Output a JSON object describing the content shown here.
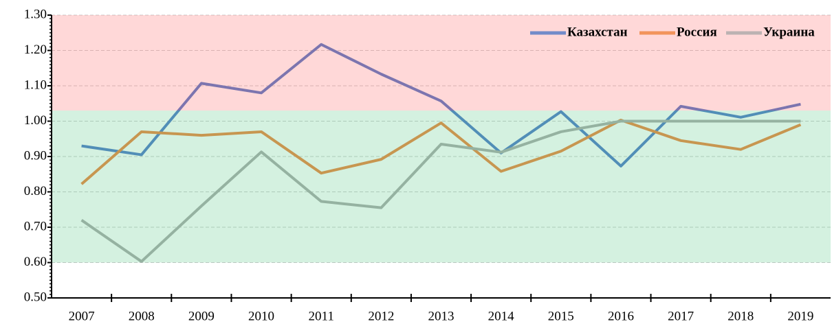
{
  "chart_data": {
    "type": "line",
    "categories": [
      "2007",
      "2008",
      "2009",
      "2010",
      "2011",
      "2012",
      "2013",
      "2014",
      "2015",
      "2016",
      "2017",
      "2018",
      "2019"
    ],
    "series": [
      {
        "name": "Казахстан",
        "color": "#4472c4",
        "values": [
          0.93,
          0.905,
          1.107,
          1.08,
          1.217,
          1.133,
          1.057,
          0.91,
          1.027,
          0.873,
          1.042,
          1.011,
          1.048
        ]
      },
      {
        "name": "Россия",
        "color": "#ed7d31",
        "values": [
          0.822,
          0.97,
          0.96,
          0.97,
          0.853,
          0.892,
          0.995,
          0.858,
          0.915,
          1.003,
          0.945,
          0.92,
          0.99
        ]
      },
      {
        "name": "Украина",
        "color": "#a5a5a5",
        "values": [
          0.72,
          0.603,
          0.76,
          0.913,
          0.773,
          0.755,
          0.935,
          0.912,
          0.97,
          1.0,
          1.0,
          1.0,
          1.0
        ]
      }
    ],
    "zones": [
      {
        "from": 1.03,
        "to": 1.3,
        "color": "#ff7f7f"
      },
      {
        "from": 0.6,
        "to": 1.03,
        "color": "#6fcf97"
      }
    ],
    "ylim": [
      0.5,
      1.3
    ],
    "yticks": [
      {
        "value": 0.5,
        "label": "0.50"
      },
      {
        "value": 0.6,
        "label": "0.60"
      },
      {
        "value": 0.7,
        "label": "0.70"
      },
      {
        "value": 0.8,
        "label": "0.80"
      },
      {
        "value": 0.9,
        "label": "0.90"
      },
      {
        "value": 1.0,
        "label": "1.00"
      },
      {
        "value": 1.1,
        "label": "1.10"
      },
      {
        "value": 1.2,
        "label": "1.20"
      },
      {
        "value": 1.3,
        "label": "1.30"
      }
    ],
    "grid": true,
    "legend": "top-right"
  }
}
